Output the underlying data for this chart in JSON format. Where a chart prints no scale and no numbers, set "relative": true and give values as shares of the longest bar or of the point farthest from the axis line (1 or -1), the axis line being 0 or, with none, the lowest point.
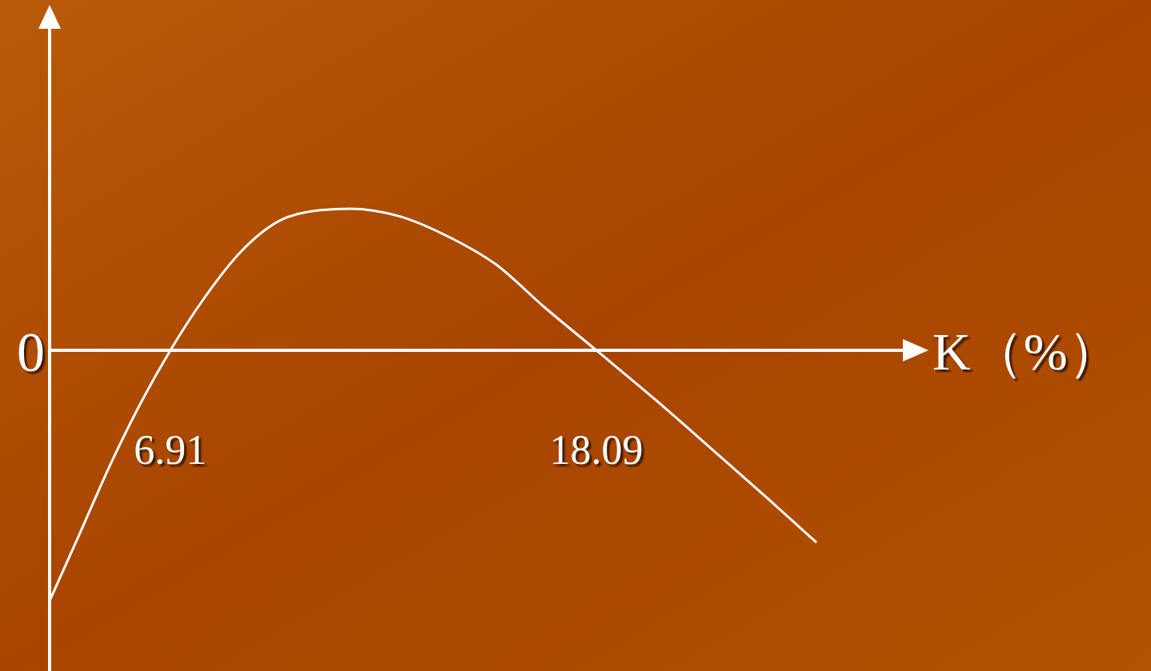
{
  "chart_data": {
    "type": "line",
    "xlabel": "K（%）",
    "relative": true,
    "xlim": [
      3.74,
      26.18
    ],
    "xticks": [
      6.91,
      18.09
    ],
    "annotations": [
      "0"
    ],
    "series": [
      {
        "color": "#ffffff",
        "x": [
          3.74,
          4.54,
          5.38,
          6.22,
          6.91,
          7.9,
          8.74,
          9.79,
          10.84,
          11.62,
          12.94,
          14.2,
          15.46,
          16.72,
          18.09,
          19.67,
          21.35,
          22.61,
          23.87
        ],
        "values": [
          -1,
          -0.728,
          -0.441,
          -0.185,
          0,
          0.23,
          0.39,
          0.518,
          0.559,
          0.565,
          0.534,
          0.454,
          0.342,
          0.173,
          0,
          -0.201,
          -0.425,
          -0.594,
          -0.767
        ]
      }
    ]
  }
}
